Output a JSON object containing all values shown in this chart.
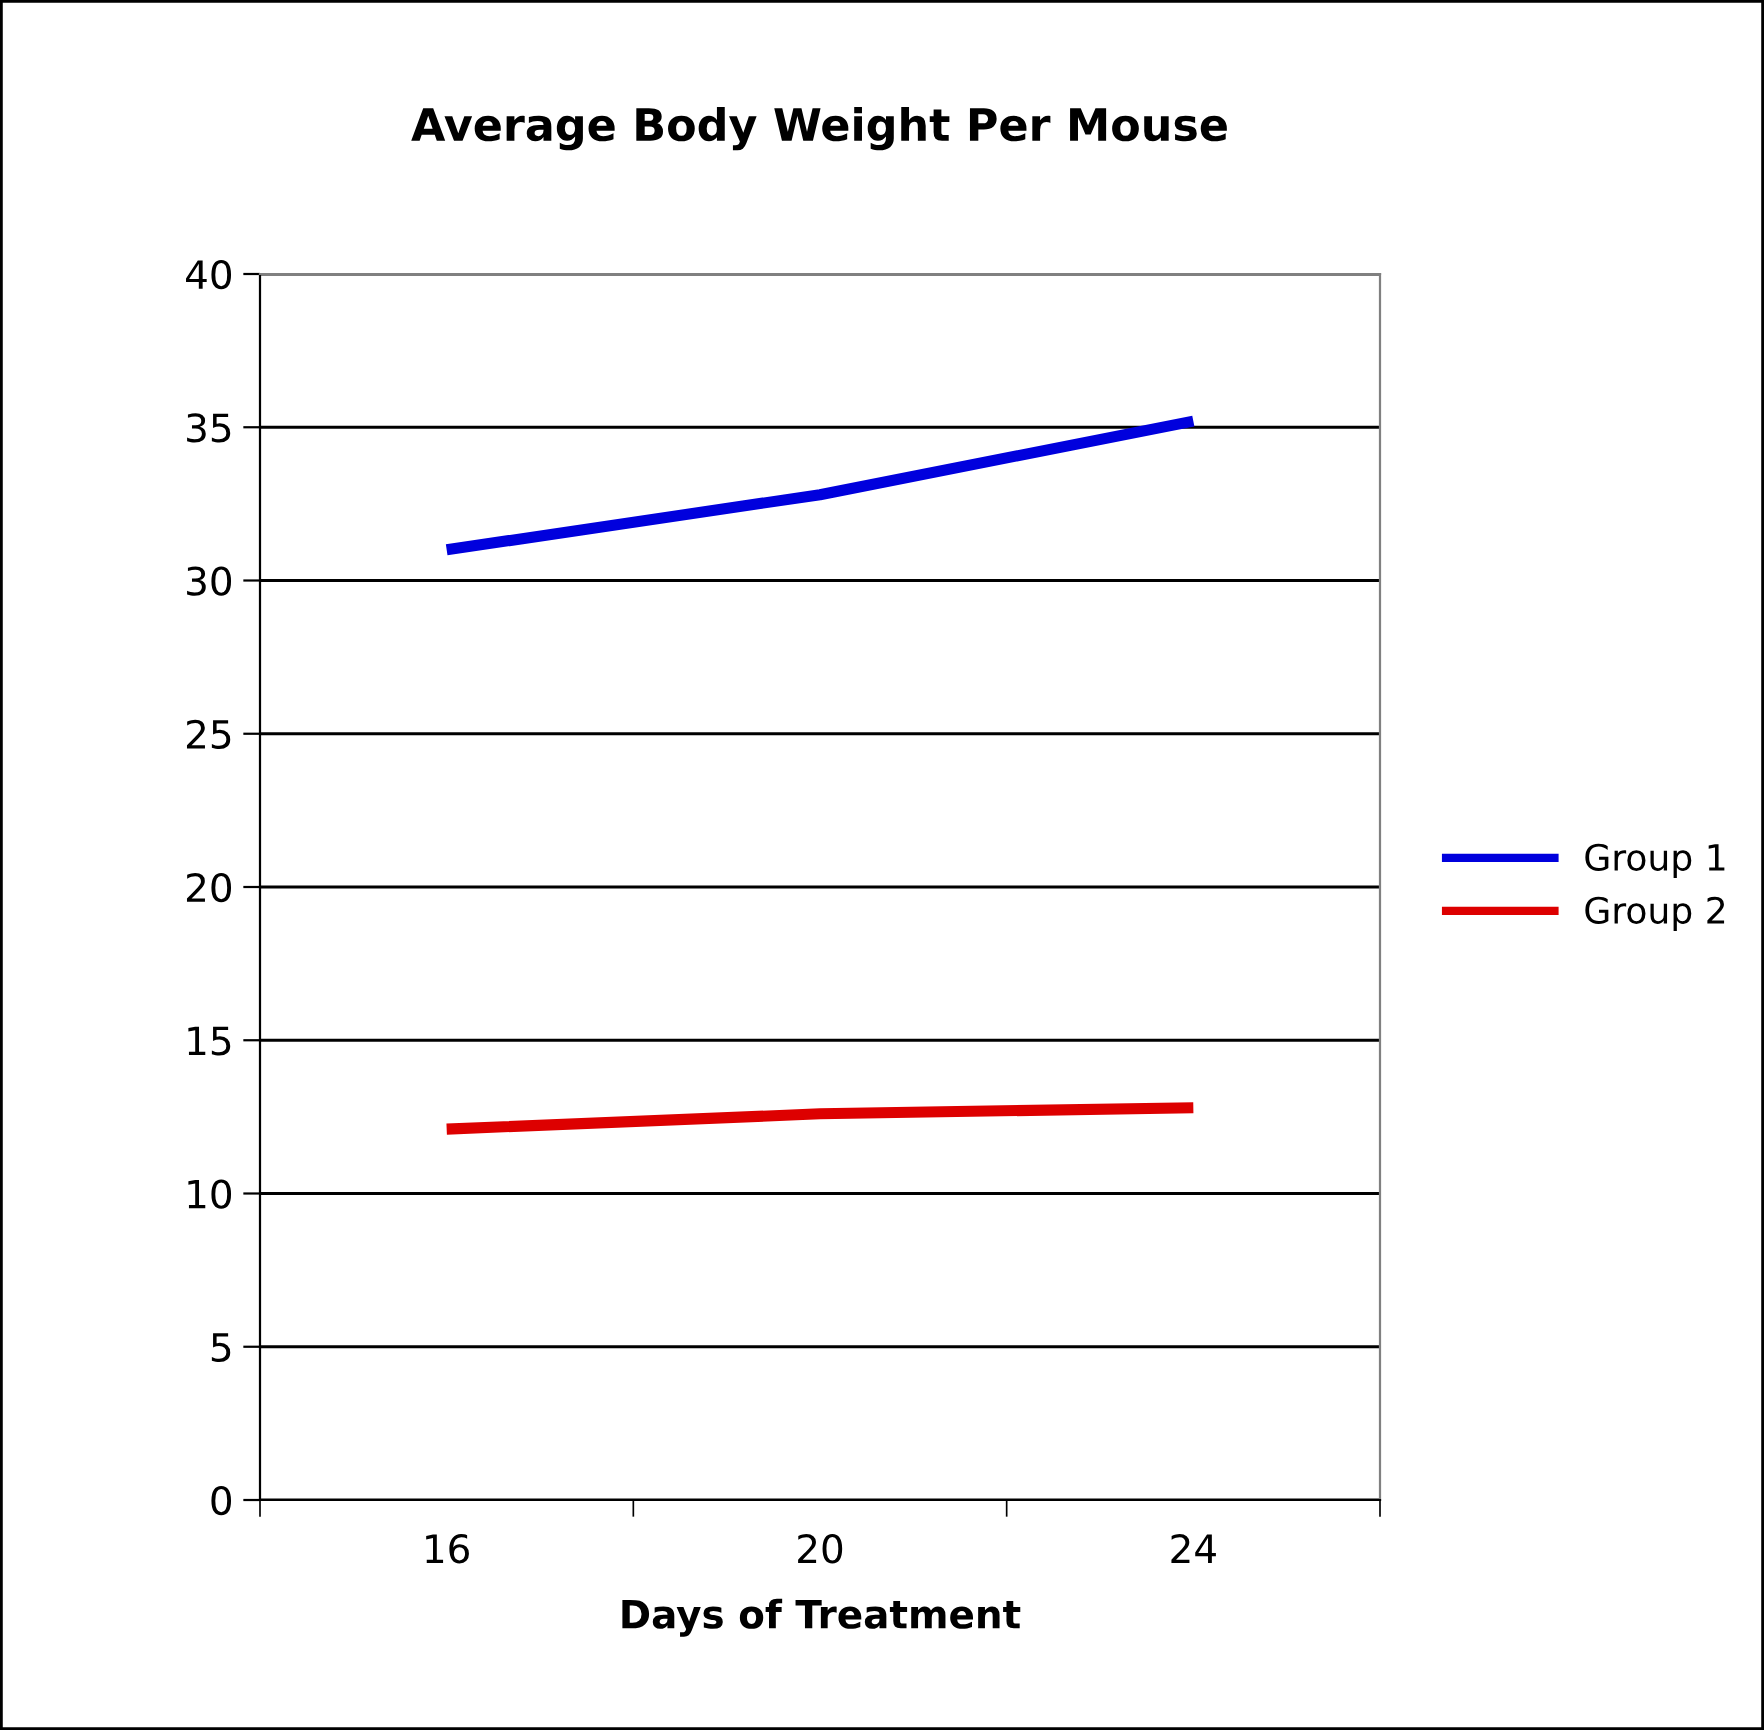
{
  "chart_data": {
    "type": "line",
    "title": "Average Body Weight Per Mouse",
    "xlabel": "Days of Treatment",
    "categories": [
      "16",
      "20",
      "24"
    ],
    "series": [
      {
        "name": "Group 1",
        "color": "#0000dd",
        "values": [
          31.0,
          32.8,
          35.2
        ]
      },
      {
        "name": "Group 2",
        "color": "#dd0000",
        "values": [
          12.1,
          12.6,
          12.8
        ]
      }
    ],
    "ylim": [
      0,
      40
    ],
    "yticks": [
      0,
      5,
      10,
      15,
      20,
      25,
      30,
      35,
      40
    ],
    "grid": "y",
    "legend": "right",
    "marker": "none",
    "line_style": "solid"
  }
}
